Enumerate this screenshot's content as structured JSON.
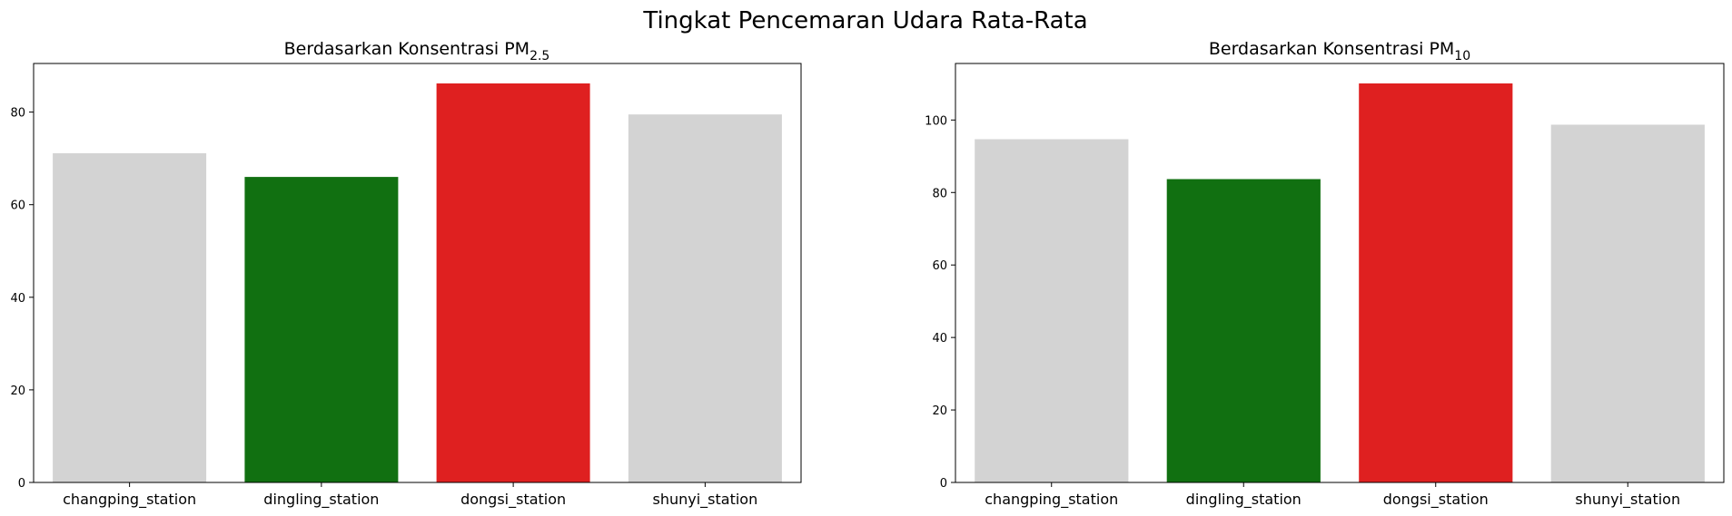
{
  "figure": {
    "suptitle": "Tingkat Pencemaran Udara Rata-Rata"
  },
  "chart_data": [
    {
      "type": "bar",
      "title": "Berdasarkan Konsentrasi PM",
      "title_subscript": "2.5",
      "xlabel": "",
      "ylabel": "",
      "categories": [
        "changping_station",
        "dingling_station",
        "dongsi_station",
        "shunyi_station"
      ],
      "values": [
        71.1,
        66.0,
        86.2,
        79.5
      ],
      "colors": [
        "#d3d3d3",
        "#117011",
        "#df2020",
        "#d3d3d3"
      ],
      "ylim": [
        0,
        90.5
      ],
      "yticks": [
        0,
        20,
        40,
        60,
        80
      ],
      "grid": false
    },
    {
      "type": "bar",
      "title": "Berdasarkan Konsentrasi PM",
      "title_subscript": "10",
      "xlabel": "",
      "ylabel": "",
      "categories": [
        "changping_station",
        "dingling_station",
        "dongsi_station",
        "shunyi_station"
      ],
      "values": [
        94.7,
        83.7,
        110.1,
        98.7
      ],
      "colors": [
        "#d3d3d3",
        "#117011",
        "#df2020",
        "#d3d3d3"
      ],
      "ylim": [
        0,
        115.6
      ],
      "yticks": [
        0,
        20,
        40,
        60,
        80,
        100
      ],
      "grid": false
    }
  ]
}
